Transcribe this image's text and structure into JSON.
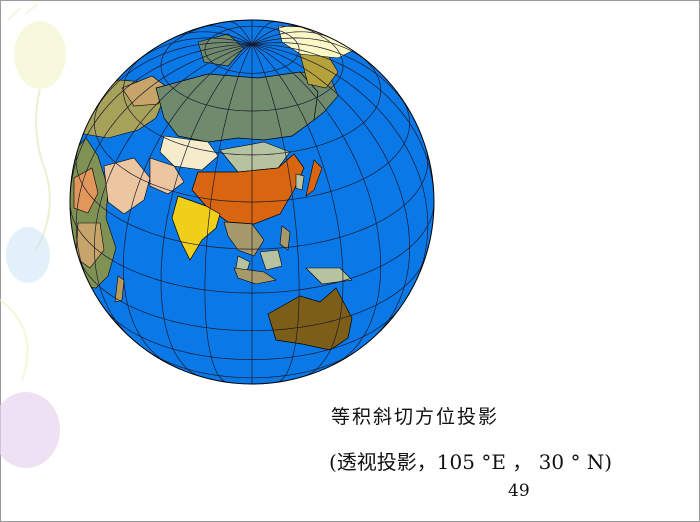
{
  "slide": {
    "title": "等积斜切方位投影",
    "subtitle": "(透视投影，105 °E ， 30 ° N)",
    "page_number": "49"
  },
  "map": {
    "ocean_color": "#0a78e6",
    "graticule_color": "#1a1a2e",
    "projection_center": "105 °E, 30 ° N"
  },
  "colors": {
    "russia": "#6f8a6c",
    "china": "#d8650f",
    "india": "#f0cf1a",
    "australia": "#7c5e18",
    "mongolia": "#b6c2a0",
    "canada": "#fbf8c6",
    "alaska": "#b5a23c",
    "kazakhstan": "#f6eccc",
    "europe": "#a7a25a",
    "arabia": "#ecc6a0",
    "africa_a": "#7f9254",
    "africa_b": "#c7a46a",
    "africa_c": "#e1965a",
    "se_asia": "#a79a6a"
  }
}
